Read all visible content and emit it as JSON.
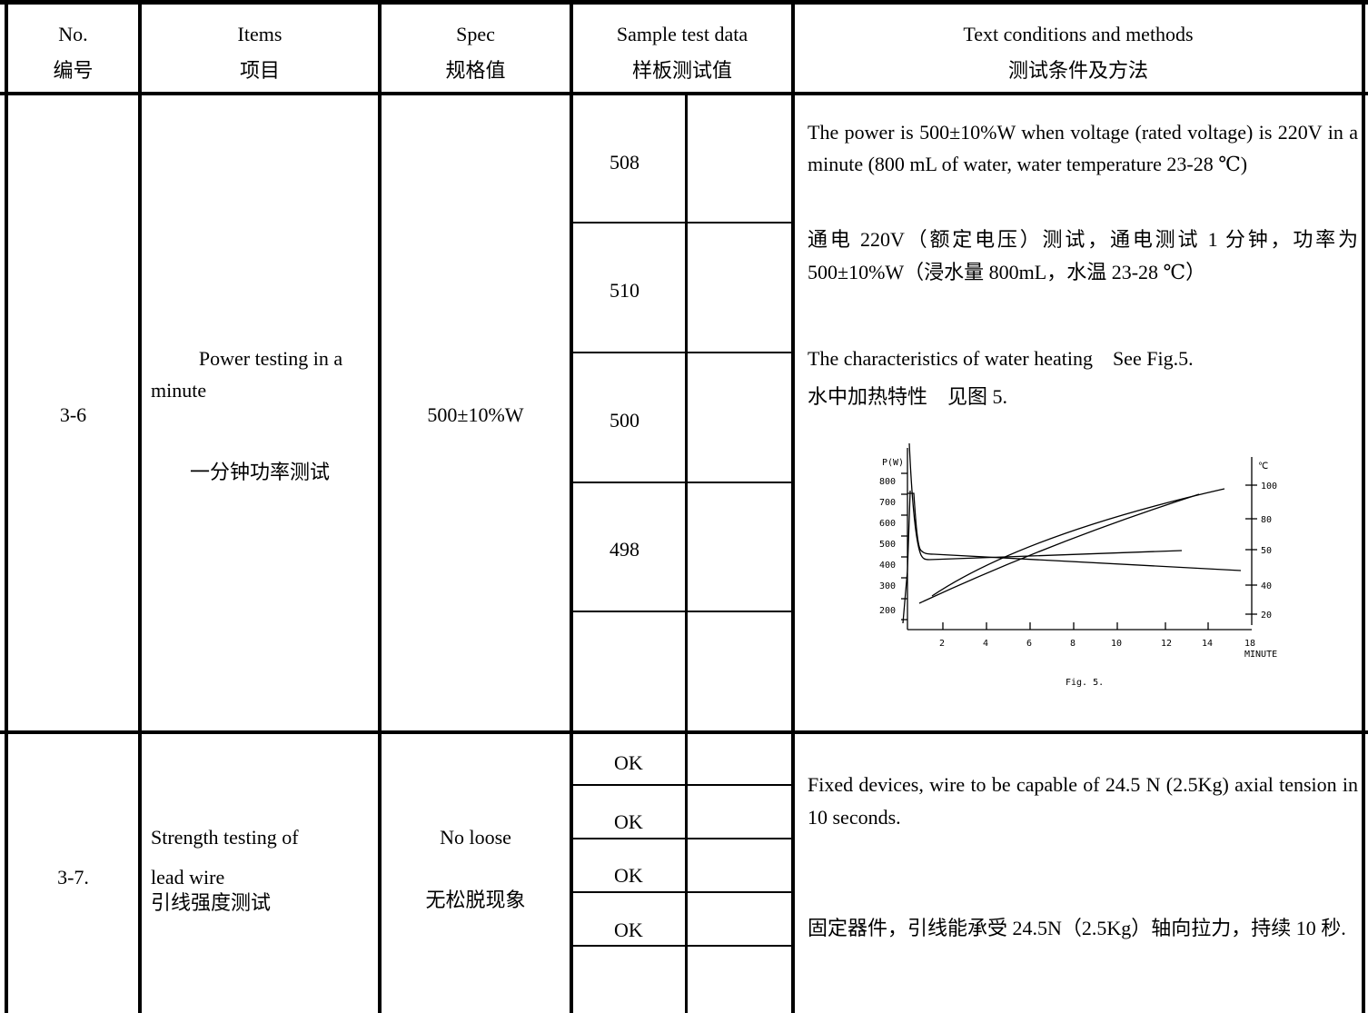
{
  "header": {
    "no_en": "No.",
    "no_zh": "编号",
    "items_en": "Items",
    "items_zh": "项目",
    "spec_en": "Spec",
    "spec_zh": "规格值",
    "sample_en": "Sample test data",
    "sample_zh": "样板测试值",
    "method_en": "Text conditions and methods",
    "method_zh": "测试条件及方法"
  },
  "rows": [
    {
      "no": "3-6",
      "item_en_1": "Power testing in a",
      "item_en_2": "minute",
      "item_zh": "一分钟功率测试",
      "spec": "500±10%W",
      "samples": [
        "508",
        "510",
        "500",
        "498",
        ""
      ],
      "method_en_1": "The power is 500±10%W when voltage (rated voltage) is 220V in a minute (800 mL of water, water temperature 23-28 ℃)",
      "method_zh_1": "通电 220V（额定电压）测试，通电测试 1 分钟，功率为 500±10%W（浸水量 800mL，水温 23-28 ℃）",
      "method_en_2": "The characteristics of water heating　See Fig.5.",
      "method_zh_2": "水中加热特性　见图 5.",
      "figure": {
        "left_axis_label": "P(W)",
        "left_ticks": [
          "800",
          "700",
          "600",
          "500",
          "400",
          "300",
          "200"
        ],
        "right_axis_label": "℃",
        "right_ticks": [
          "100",
          "80",
          "50",
          "40",
          "20"
        ],
        "x_ticks": [
          "2",
          "4",
          "6",
          "8",
          "10",
          "12",
          "14",
          "18"
        ],
        "x_label": "MINUTE",
        "caption": "Fig. 5."
      }
    },
    {
      "no": "3-7.",
      "item_en_1": "Strength testing of",
      "item_en_2": "lead wire",
      "item_zh": "引线强度测试",
      "spec_en": "No loose",
      "spec_zh": "无松脱现象",
      "samples": [
        "OK",
        "OK",
        "OK",
        "OK",
        ""
      ],
      "method_en": "Fixed devices, wire to be capable of 24.5 N (2.5Kg) axial tension in 10 seconds.",
      "method_zh": "固定器件，引线能承受 24.5N（2.5Kg）轴向拉力，持续 10 秒."
    }
  ]
}
